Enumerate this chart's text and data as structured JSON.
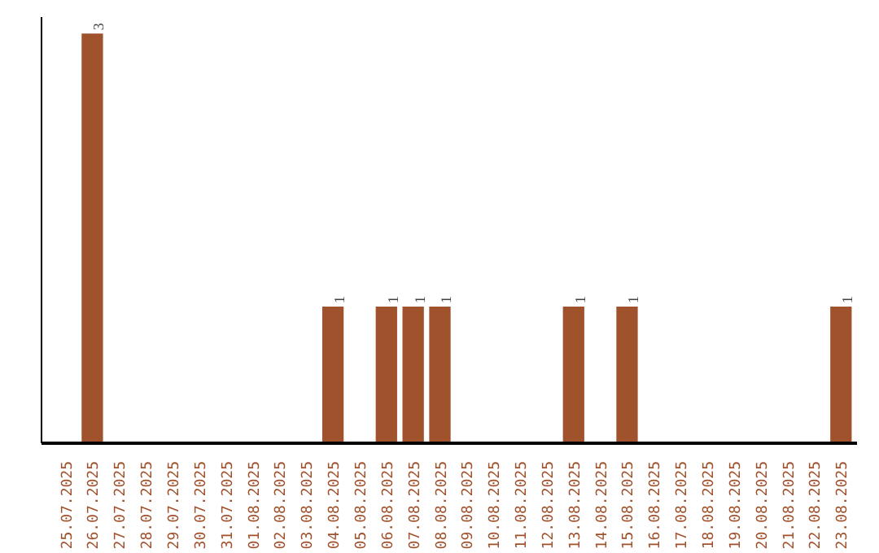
{
  "chart_data": {
    "type": "bar",
    "categories": [
      "25.07.2025",
      "26.07.2025",
      "27.07.2025",
      "28.07.2025",
      "29.07.2025",
      "30.07.2025",
      "31.07.2025",
      "01.08.2025",
      "02.08.2025",
      "03.08.2025",
      "04.08.2025",
      "05.08.2025",
      "06.08.2025",
      "07.08.2025",
      "08.08.2025",
      "09.08.2025",
      "10.08.2025",
      "11.08.2025",
      "12.08.2025",
      "13.08.2025",
      "14.08.2025",
      "15.08.2025",
      "16.08.2025",
      "17.08.2025",
      "18.08.2025",
      "19.08.2025",
      "20.08.2025",
      "21.08.2025",
      "22.08.2025",
      "23.08.2025"
    ],
    "values": [
      0,
      3,
      0,
      0,
      0,
      0,
      0,
      0,
      0,
      0,
      1,
      0,
      1,
      1,
      1,
      0,
      0,
      0,
      0,
      1,
      0,
      1,
      0,
      0,
      0,
      0,
      0,
      0,
      0,
      1
    ],
    "value_labels": [
      null,
      "3",
      null,
      null,
      null,
      null,
      null,
      null,
      null,
      null,
      "1",
      null,
      "1",
      "1",
      "1",
      null,
      null,
      null,
      null,
      "1",
      null,
      "1",
      null,
      null,
      null,
      null,
      null,
      null,
      null,
      "1"
    ],
    "color": "#a0522d",
    "tick_labels": "x",
    "grid": false
  }
}
